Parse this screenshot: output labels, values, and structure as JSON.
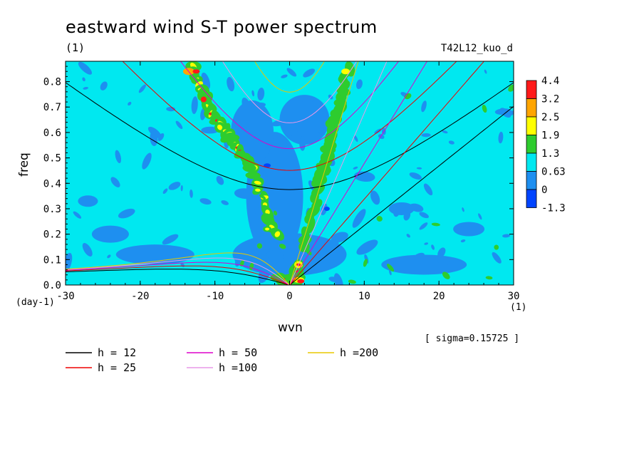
{
  "title": "eastward wind S-T power spectrum",
  "unit_label": "(1)",
  "run_name": "T42L12_kuo_d",
  "sigma_text": "[ sigma=0.15725 ]",
  "colors": {
    "background_level": "#00e8f0",
    "low_level": "#1e8ff0",
    "lowest_level": "#0044ff",
    "green": "#2ecc2e",
    "yellow": "#ffff00",
    "orange": "#ffa500",
    "red": "#ff1a1a"
  },
  "chart_data": {
    "type": "heatmap",
    "title": "eastward wind S-T power spectrum",
    "xlabel": "wvn",
    "ylabel": "freq",
    "x_unit": "(1)",
    "y_unit": "(day-1)",
    "xlim": [
      -30,
      30
    ],
    "ylim": [
      0.0,
      0.88
    ],
    "x_ticks": [
      -30,
      -20,
      -10,
      0,
      10,
      20,
      30
    ],
    "x_tick_labels": [
      "-30",
      "-20",
      "-10",
      "0",
      "10",
      "20",
      "30"
    ],
    "y_ticks": [
      0.0,
      0.1,
      0.2,
      0.3,
      0.4,
      0.5,
      0.6,
      0.7,
      0.8
    ],
    "y_tick_labels": [
      "0.0",
      "0.1",
      "0.2",
      "0.3",
      "0.4",
      "0.5",
      "0.6",
      "0.7",
      "0.8"
    ],
    "colorbar": {
      "labels": [
        "4.4",
        "3.2",
        "2.5",
        "1.9",
        "1.3",
        "0.63",
        "0",
        "-1.3"
      ],
      "colors": [
        "#ff1a1a",
        "#ffa500",
        "#ffff00",
        "#2ecc2e",
        "#00e8f0",
        "#1e8ff0",
        "#0044ff"
      ]
    },
    "dispersion_curves": [
      {
        "name": "h = 12",
        "color": "#000000"
      },
      {
        "name": "h = 25",
        "color": "#ee0000"
      },
      {
        "name": "h = 50",
        "color": "#dd00cc"
      },
      {
        "name": "h =100",
        "color": "#e898e8"
      },
      {
        "name": "h =200",
        "color": "#e8c800"
      }
    ],
    "features": [
      {
        "kind": "rossby-band",
        "points": [
          [
            -13,
            0.86
          ],
          [
            -11,
            0.7
          ],
          [
            -8,
            0.58
          ],
          [
            -5,
            0.46
          ],
          [
            -2,
            0.2
          ]
        ],
        "level": "2.5"
      },
      {
        "kind": "kelvin-band",
        "points": [
          [
            8,
            0.85
          ],
          [
            6,
            0.65
          ],
          [
            5,
            0.5
          ],
          [
            4,
            0.4
          ],
          [
            2,
            0.15
          ]
        ],
        "level": "1.9"
      },
      {
        "kind": "low-frequency-peak",
        "points": [
          [
            -1,
            0.02
          ],
          [
            1,
            0.02
          ],
          [
            1,
            0.08
          ]
        ],
        "level": "4.4"
      }
    ]
  }
}
